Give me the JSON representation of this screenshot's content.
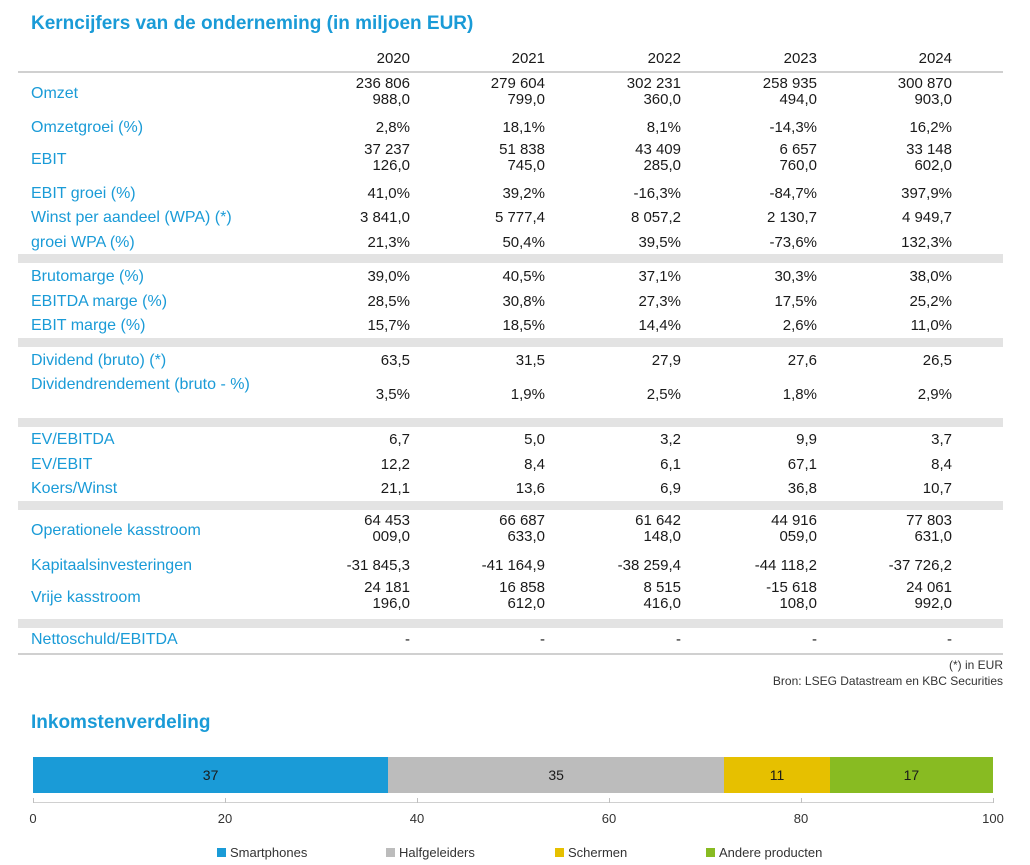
{
  "title": "Kerncijfers van de onderneming (in miljoen EUR)",
  "years": [
    "2020",
    "2021",
    "2022",
    "2023",
    "2024"
  ],
  "rows": [
    {
      "label": "Omzet",
      "values": [
        [
          "236 806",
          "988,0"
        ],
        [
          "279 604",
          "799,0"
        ],
        [
          "302 231",
          "360,0"
        ],
        [
          "258 935",
          "494,0"
        ],
        [
          "300 870",
          "903,0"
        ]
      ]
    },
    {
      "label": "Omzetgroei (%)",
      "values": [
        "2,8%",
        "18,1%",
        "8,1%",
        "-14,3%",
        "16,2%"
      ]
    },
    {
      "label": "EBIT",
      "values": [
        [
          "37 237",
          "126,0"
        ],
        [
          "51 838",
          "745,0"
        ],
        [
          "43 409",
          "285,0"
        ],
        [
          "6 657",
          "760,0"
        ],
        [
          "33 148",
          "602,0"
        ]
      ]
    },
    {
      "label": "EBIT groei (%)",
      "values": [
        "41,0%",
        "39,2%",
        "-16,3%",
        "-84,7%",
        "397,9%"
      ]
    },
    {
      "label": "Winst per aandeel (WPA) (*)",
      "values": [
        "3 841,0",
        "5 777,4",
        "8 057,2",
        "2 130,7",
        "4 949,7"
      ]
    },
    {
      "label": "groei WPA (%)",
      "values": [
        "21,3%",
        "50,4%",
        "39,5%",
        "-73,6%",
        "132,3%"
      ]
    },
    {
      "label": "Brutomarge (%)",
      "values": [
        "39,0%",
        "40,5%",
        "37,1%",
        "30,3%",
        "38,0%"
      ]
    },
    {
      "label": "EBITDA marge (%)",
      "values": [
        "28,5%",
        "30,8%",
        "27,3%",
        "17,5%",
        "25,2%"
      ]
    },
    {
      "label": "EBIT marge (%)",
      "values": [
        "15,7%",
        "18,5%",
        "14,4%",
        "2,6%",
        "11,0%"
      ]
    },
    {
      "label": "Dividend (bruto) (*)",
      "values": [
        "63,5",
        "31,5",
        "27,9",
        "27,6",
        "26,5"
      ]
    },
    {
      "label": "Dividendrendement (bruto - %)",
      "values": [
        "3,5%",
        "1,9%",
        "2,5%",
        "1,8%",
        "2,9%"
      ]
    },
    {
      "label": "EV/EBITDA",
      "values": [
        "6,7",
        "5,0",
        "3,2",
        "9,9",
        "3,7"
      ]
    },
    {
      "label": "EV/EBIT",
      "values": [
        "12,2",
        "8,4",
        "6,1",
        "67,1",
        "8,4"
      ]
    },
    {
      "label": "Koers/Winst",
      "values": [
        "21,1",
        "13,6",
        "6,9",
        "36,8",
        "10,7"
      ]
    },
    {
      "label": "Operationele kasstroom",
      "values": [
        [
          "64 453",
          "009,0"
        ],
        [
          "66 687",
          "633,0"
        ],
        [
          "61 642",
          "148,0"
        ],
        [
          "44 916",
          "059,0"
        ],
        [
          "77 803",
          "631,0"
        ]
      ]
    },
    {
      "label": "Kapitaalsinvesteringen",
      "values": [
        "-31 845,3",
        "-41 164,9",
        "-38 259,4",
        "-44 118,2",
        "-37 726,2"
      ]
    },
    {
      "label": "Vrije kasstroom",
      "values": [
        [
          "24 181",
          "196,0"
        ],
        [
          "16 858",
          "612,0"
        ],
        [
          "8 515",
          "416,0"
        ],
        [
          "-15 618",
          "108,0"
        ],
        [
          "24 061",
          "992,0"
        ]
      ]
    },
    {
      "label": "Nettoschuld/EBITDA",
      "values": [
        "-",
        "-",
        "-",
        "-",
        "-"
      ]
    }
  ],
  "footnote": "(*) in EUR",
  "source": "Bron: LSEG Datastream en KBC Securities",
  "chart_title": "Inkomstenverdeling",
  "chart_data": {
    "type": "bar",
    "orientation": "horizontal-stacked",
    "series": [
      {
        "name": "Smartphones",
        "values": [
          37
        ],
        "color": "#1a9bd7"
      },
      {
        "name": "Halfgeleiders",
        "values": [
          35
        ],
        "color": "#bcbcbc"
      },
      {
        "name": "Schermen",
        "values": [
          11
        ],
        "color": "#e6c000"
      },
      {
        "name": "Andere producten",
        "values": [
          17
        ],
        "color": "#88bb22"
      }
    ],
    "xlim": [
      0,
      100
    ],
    "xticks": [
      "0",
      "20",
      "40",
      "60",
      "80",
      "100"
    ],
    "legend": "bottom"
  }
}
